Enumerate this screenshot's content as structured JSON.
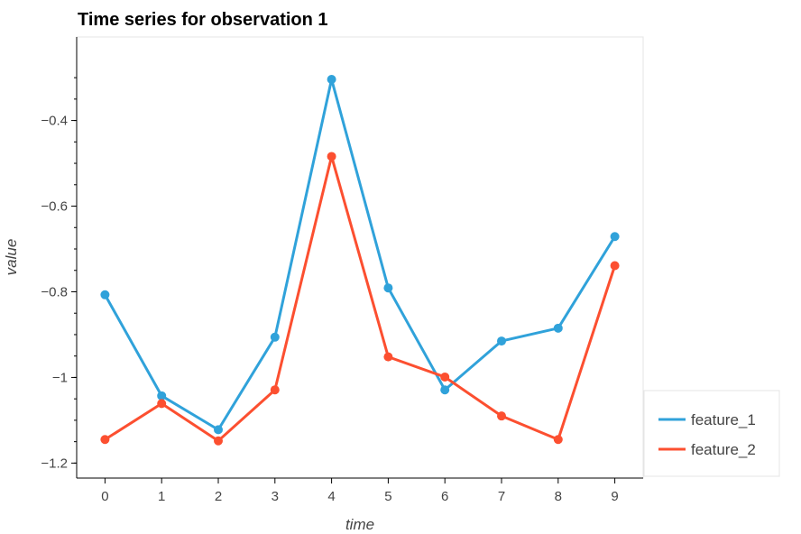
{
  "chart_data": {
    "type": "line",
    "title": "Time series for observation 1",
    "xlabel": "time",
    "ylabel": "value",
    "x": [
      0,
      1,
      2,
      3,
      4,
      5,
      6,
      7,
      8,
      9
    ],
    "xlim": [
      -0.5,
      9.5
    ],
    "ylim": [
      -1.235,
      -0.205
    ],
    "x_ticks": [
      0,
      1,
      2,
      3,
      4,
      5,
      6,
      7,
      8,
      9
    ],
    "y_ticks": [
      -1.2,
      -1,
      -0.8,
      -0.6,
      -0.4
    ],
    "y_tick_labels": [
      "−1.2",
      "−1",
      "−0.8",
      "−0.6",
      "−0.4"
    ],
    "grid": false,
    "legend_position": "bottom-right, outside plot",
    "series": [
      {
        "name": "feature_1",
        "color": "#30a2da",
        "values": [
          -0.807,
          -1.043,
          -1.122,
          -0.906,
          -0.304,
          -0.791,
          -1.029,
          -0.915,
          -0.885,
          -0.671
        ]
      },
      {
        "name": "feature_2",
        "color": "#fc4f30",
        "values": [
          -1.145,
          -1.061,
          -1.148,
          -1.029,
          -0.484,
          -0.952,
          -0.999,
          -1.09,
          -1.145,
          -0.739
        ]
      }
    ]
  }
}
